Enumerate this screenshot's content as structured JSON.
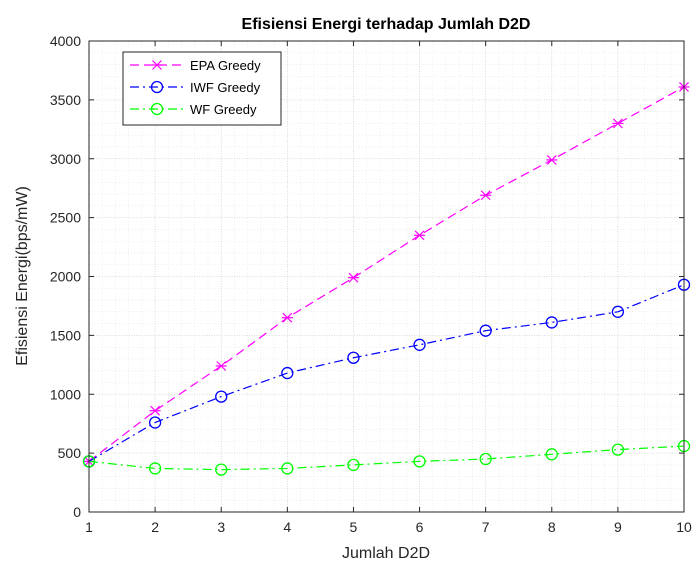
{
  "chart_data": {
    "type": "line",
    "title": "Efisiensi Energi terhadap Jumlah D2D",
    "xlabel": "Jumlah D2D",
    "ylabel": "Efisiensi Energi(bps/mW)",
    "xlim": [
      1,
      10
    ],
    "ylim": [
      0,
      4000
    ],
    "x_ticks": [
      "1",
      "2",
      "3",
      "4",
      "5",
      "6",
      "7",
      "8",
      "9",
      "10"
    ],
    "y_ticks": [
      "0",
      "500",
      "1000",
      "1500",
      "2000",
      "2500",
      "3000",
      "3500",
      "4000"
    ],
    "grid": true,
    "minor_grid": true,
    "legend_position": "top-left",
    "x": [
      1,
      2,
      3,
      4,
      5,
      6,
      7,
      8,
      9,
      10
    ],
    "series": [
      {
        "name": "EPA Greedy",
        "color": "#ff00ff",
        "line_style": "dashed",
        "marker": "x-star",
        "values": [
          430,
          860,
          1240,
          1650,
          1990,
          2350,
          2690,
          2990,
          3300,
          3610
        ]
      },
      {
        "name": "IWF Greedy",
        "color": "#0000ff",
        "line_style": "dash-dot",
        "marker": "circle",
        "values": [
          430,
          760,
          980,
          1180,
          1310,
          1420,
          1540,
          1610,
          1700,
          1930
        ]
      },
      {
        "name": "WF Greedy",
        "color": "#00ff00",
        "line_style": "dash-dot",
        "marker": "circle",
        "values": [
          430,
          370,
          360,
          370,
          400,
          430,
          450,
          490,
          530,
          560
        ]
      }
    ]
  }
}
